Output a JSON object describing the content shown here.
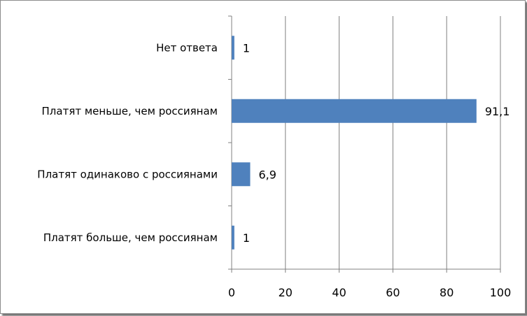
{
  "chart_data": {
    "type": "bar",
    "orientation": "horizontal",
    "categories": [
      "Нет ответа",
      "Платят меньше, чем россиянам",
      "Платят одинаково с россиянами",
      "Платят больше, чем россиянам"
    ],
    "values": [
      1,
      91.1,
      6.9,
      1
    ],
    "value_labels": [
      "1",
      "91,1",
      "6,9",
      "1"
    ],
    "xlim": [
      0,
      100
    ],
    "x_ticks": [
      0,
      20,
      40,
      60,
      80,
      100
    ],
    "x_tick_labels": [
      "0",
      "20",
      "40",
      "60",
      "80",
      "100"
    ],
    "grid": true,
    "bar_color": "#4f81bd",
    "grid_color": "#808080"
  }
}
